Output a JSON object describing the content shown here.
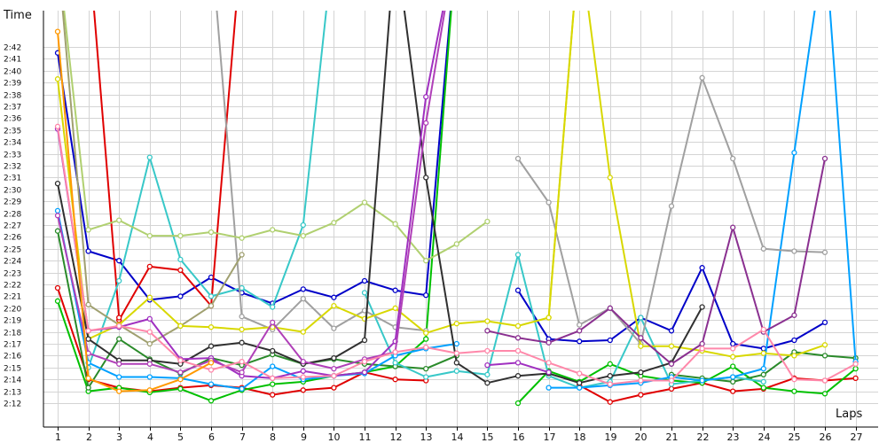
{
  "chart_data": {
    "type": "line",
    "xlabel": "Laps",
    "ylabel": "Time",
    "x_categories": [
      "1",
      "2",
      "3",
      "4",
      "5",
      "6",
      "7",
      "8",
      "9",
      "10",
      "11",
      "12",
      "13",
      "14",
      "15",
      "16",
      "17",
      "18",
      "19",
      "20",
      "21",
      "22",
      "23",
      "24",
      "25",
      "26",
      "27"
    ],
    "y_ticks": [
      "2:12",
      "2:13",
      "2:14",
      "2:15",
      "2:16",
      "2:17",
      "2:18",
      "2:19",
      "2:20",
      "2:21",
      "2:22",
      "2:23",
      "2:24",
      "2:25",
      "2:26",
      "2:27",
      "2:28",
      "2:29",
      "2:30",
      "2:31",
      "2:32",
      "2:33",
      "2:34",
      "2:35",
      "2:36",
      "2:37",
      "2:38",
      "2:39",
      "2:40",
      "2:41",
      "2:42"
    ],
    "ylim_seconds": [
      131,
      145.3
    ],
    "grid": true,
    "legend": "none",
    "series": [
      {
        "color": "#0000c8",
        "values": [
          161.5,
          144.8,
          144.0,
          140.7,
          141.0,
          142.6,
          141.3,
          140.4,
          141.6,
          140.9,
          142.3,
          141.5,
          141.1,
          171,
          null,
          null,
          null,
          null,
          null,
          null,
          null,
          null,
          null,
          null,
          null,
          null,
          null
        ]
      },
      {
        "color": "#0000c8",
        "values": [
          null,
          null,
          null,
          null,
          null,
          null,
          null,
          null,
          null,
          null,
          null,
          null,
          null,
          null,
          null,
          141.5,
          137.4,
          137.2,
          137.3,
          139.2,
          138.1,
          143.4,
          137.0,
          136.6,
          137.3,
          138.8,
          null
        ]
      },
      {
        "color": "#e00000",
        "values": [
          141.7,
          134.0,
          133.3,
          133.0,
          133.3,
          133.5,
          133.3,
          132.7,
          133.1,
          133.3,
          134.6,
          134.0,
          133.9,
          null,
          null,
          null,
          null,
          null,
          null,
          null,
          null,
          null,
          null,
          null,
          null,
          null,
          null
        ]
      },
      {
        "color": "#e00000",
        "values": [
          null,
          null,
          139.0,
          143.5,
          143.2,
          140.2,
          171,
          null,
          null,
          null,
          null,
          null,
          null,
          null,
          null,
          null,
          null,
          null,
          null,
          null,
          null,
          null,
          null,
          null,
          null,
          null,
          null
        ]
      },
      {
        "color": "#e00000",
        "values": [
          null,
          null,
          null,
          null,
          null,
          null,
          null,
          null,
          null,
          null,
          null,
          null,
          null,
          null,
          null,
          null,
          null,
          133.5,
          132.1,
          132.7,
          133.2,
          133.7,
          133.0,
          133.2,
          134.1,
          133.9,
          134.1
        ]
      },
      {
        "color": "#e00000",
        "values": [
          null,
          171,
          139.2,
          null,
          null,
          null,
          null,
          null,
          null,
          null,
          null,
          null,
          null,
          null,
          null,
          null,
          null,
          null,
          null,
          null,
          null,
          null,
          null,
          null,
          null,
          null,
          null
        ]
      },
      {
        "color": "#00c000",
        "values": [
          140.6,
          133.0,
          133.3,
          132.9,
          133.2,
          132.2,
          133.1,
          133.6,
          133.8,
          134.3,
          134.6,
          135.1,
          137.4,
          171,
          null,
          null,
          null,
          null,
          null,
          null,
          null,
          null,
          null,
          null,
          null,
          null,
          null
        ]
      },
      {
        "color": "#00c000",
        "values": [
          null,
          null,
          null,
          null,
          null,
          null,
          null,
          null,
          null,
          null,
          null,
          null,
          null,
          null,
          null,
          132.0,
          134.7,
          133.8,
          135.3,
          134.3,
          133.9,
          133.7,
          135.1,
          133.3,
          133.0,
          132.8,
          134.9
        ]
      },
      {
        "color": "#2a8a2a",
        "values": [
          146.5,
          133.3,
          137.4,
          135.7,
          134.5,
          135.8,
          135.2,
          136.1,
          135.3,
          135.7,
          135.3,
          135.1,
          134.9,
          136,
          null,
          null,
          null,
          null,
          null,
          null,
          null,
          null,
          null,
          null,
          null,
          null,
          null
        ]
      },
      {
        "color": "#2a8a2a",
        "values": [
          null,
          null,
          null,
          null,
          null,
          null,
          null,
          null,
          null,
          null,
          null,
          null,
          null,
          null,
          null,
          null,
          null,
          null,
          null,
          null,
          134.4,
          134.1,
          133.8,
          134.4,
          136.3,
          136.0,
          135.8
        ]
      },
      {
        "color": "#38c8c8",
        "values": [
          null,
          135.0,
          142.3,
          152.7,
          144.1,
          141.0,
          141.7,
          140.1,
          147.0,
          171,
          null,
          null,
          null,
          null,
          null,
          null,
          null,
          null,
          null,
          null,
          null,
          null,
          null,
          null,
          null,
          null,
          null
        ]
      },
      {
        "color": "#38c8c8",
        "values": [
          null,
          null,
          null,
          null,
          null,
          null,
          null,
          null,
          null,
          null,
          141.3,
          135.4,
          134.2,
          134.7,
          134.4,
          144.5,
          134.3,
          133.3,
          133.8,
          139.2,
          133.6,
          133.9,
          134.2,
          133.8,
          null,
          null,
          null
        ]
      },
      {
        "color": "#00a0ff",
        "values": [
          148.2,
          135.4,
          134.2,
          134.2,
          134.1,
          133.6,
          133.2,
          135.1,
          134.0,
          134.3,
          134.5,
          136.0,
          136.6,
          137,
          null,
          null,
          null,
          null,
          null,
          null,
          null,
          null,
          null,
          null,
          null,
          null,
          null
        ]
      },
      {
        "color": "#00a0ff",
        "values": [
          null,
          null,
          null,
          null,
          null,
          null,
          null,
          null,
          null,
          null,
          null,
          null,
          null,
          null,
          null,
          null,
          133.3,
          133.3,
          133.5,
          133.7,
          134.2,
          133.9,
          134.2,
          134.9,
          153.1,
          171,
          135.5
        ]
      },
      {
        "color": "#a0a0a0",
        "values": [
          null,
          null,
          null,
          null,
          null,
          171,
          139.3,
          138.2,
          140.8,
          138.3,
          139.8,
          138.4,
          138.1,
          null,
          null,
          null,
          null,
          null,
          null,
          null,
          null,
          null,
          null,
          null,
          null,
          null,
          null
        ]
      },
      {
        "color": "#a0a0a0",
        "values": [
          null,
          null,
          null,
          null,
          null,
          null,
          null,
          null,
          null,
          null,
          null,
          null,
          null,
          null,
          null,
          152.6,
          148.9,
          138.6,
          140.0,
          137.0,
          148.6,
          159.4,
          152.6,
          145.0,
          144.8,
          144.7,
          null
        ]
      },
      {
        "color": "#b0d070",
        "values": [
          170,
          146.6,
          147.4,
          146.1,
          146.1,
          146.4,
          145.9,
          146.6,
          146.1,
          147.2,
          148.9,
          147.1,
          144.0,
          145.4,
          147.3,
          null,
          null,
          null,
          null,
          null,
          null,
          null,
          null,
          null,
          null,
          null,
          null
        ]
      },
      {
        "color": "#a0a070",
        "values": [
          170,
          140.3,
          138.6,
          137.0,
          138.5,
          140.2,
          144.5,
          null,
          null,
          null,
          null,
          null,
          null,
          null,
          null,
          null,
          null,
          null,
          null,
          null,
          null,
          null,
          null,
          null,
          null,
          null,
          null
        ]
      },
      {
        "color": "#d8d800",
        "values": [
          159.3,
          137.4,
          138.6,
          140.9,
          138.5,
          138.4,
          138.2,
          138.4,
          138.0,
          140.2,
          139.1,
          140.0,
          137.9,
          138.7,
          138.9,
          138.5,
          139.2,
          171,
          151.0,
          136.8,
          136.8,
          136.4,
          135.9,
          136.2,
          136.0,
          136.9,
          null
        ]
      },
      {
        "color": "#d8d800",
        "values": [
          null,
          null,
          null,
          null,
          null,
          null,
          null,
          null,
          null,
          null,
          null,
          null,
          null,
          null,
          null,
          null,
          139.2,
          171,
          null,
          null,
          null,
          null,
          null,
          null,
          null,
          null,
          null
        ]
      },
      {
        "color": "#303030",
        "values": [
          150.5,
          137.4,
          135.6,
          135.6,
          135.3,
          136.8,
          137.1,
          136.4,
          135.3,
          135.8,
          137.3,
          171,
          151.0,
          135.4,
          133.7,
          134.3,
          134.5,
          133.7,
          134.3,
          134.6,
          135.4,
          140.1,
          null,
          null,
          null,
          null,
          null
        ]
      },
      {
        "color": "#a030c0",
        "values": [
          155.1,
          138.1,
          138.4,
          139.1,
          135.7,
          135.8,
          134.3,
          134.1,
          134.7,
          134.3,
          134.6,
          137.2,
          157.8,
          171,
          null,
          null,
          null,
          null,
          null,
          null,
          null,
          null,
          null,
          null,
          null,
          null,
          null
        ]
      },
      {
        "color": "#a030c0",
        "values": [
          null,
          null,
          null,
          null,
          null,
          null,
          null,
          null,
          null,
          null,
          null,
          null,
          null,
          null,
          135.2,
          135.4,
          134.6,
          null,
          null,
          null,
          null,
          null,
          null,
          null,
          null,
          null,
          null
        ]
      },
      {
        "color": "#b040b8",
        "values": [
          147.8,
          136.2,
          135.3,
          135.3,
          134.6,
          135.6,
          134.6,
          138.8,
          135.5,
          134.9,
          135.7,
          136.3,
          155.6,
          171,
          null,
          null,
          null,
          null,
          null,
          null,
          null,
          null,
          null,
          null,
          null,
          null,
          null
        ]
      },
      {
        "color": "#8a3090",
        "values": [
          null,
          null,
          null,
          null,
          null,
          null,
          null,
          null,
          null,
          null,
          null,
          null,
          null,
          null,
          138.1,
          137.5,
          137.1,
          138.1,
          140.0,
          137.5,
          135.3,
          137.0,
          146.8,
          138.0,
          139.4,
          152.6,
          null
        ]
      },
      {
        "color": "#ff88aa",
        "values": [
          155.3,
          138.1,
          138.5,
          138.0,
          135.6,
          134.8,
          135.5,
          134.1,
          134.2,
          134.3,
          135.5,
          136.3,
          136.7,
          136.2,
          136.4,
          136.4,
          135.4,
          134.5,
          133.6,
          133.9,
          133.9,
          136.6,
          136.6,
          138.2,
          134.0,
          133.9,
          135.3
        ]
      },
      {
        "color": "#ff9900",
        "values": [
          163.3,
          134.1,
          133.0,
          133.1,
          134.0,
          135.4,
          null,
          null,
          null,
          null,
          null,
          null,
          null,
          null,
          null,
          null,
          null,
          null,
          null,
          null,
          null,
          null,
          null,
          null,
          null,
          null,
          null
        ]
      }
    ]
  }
}
